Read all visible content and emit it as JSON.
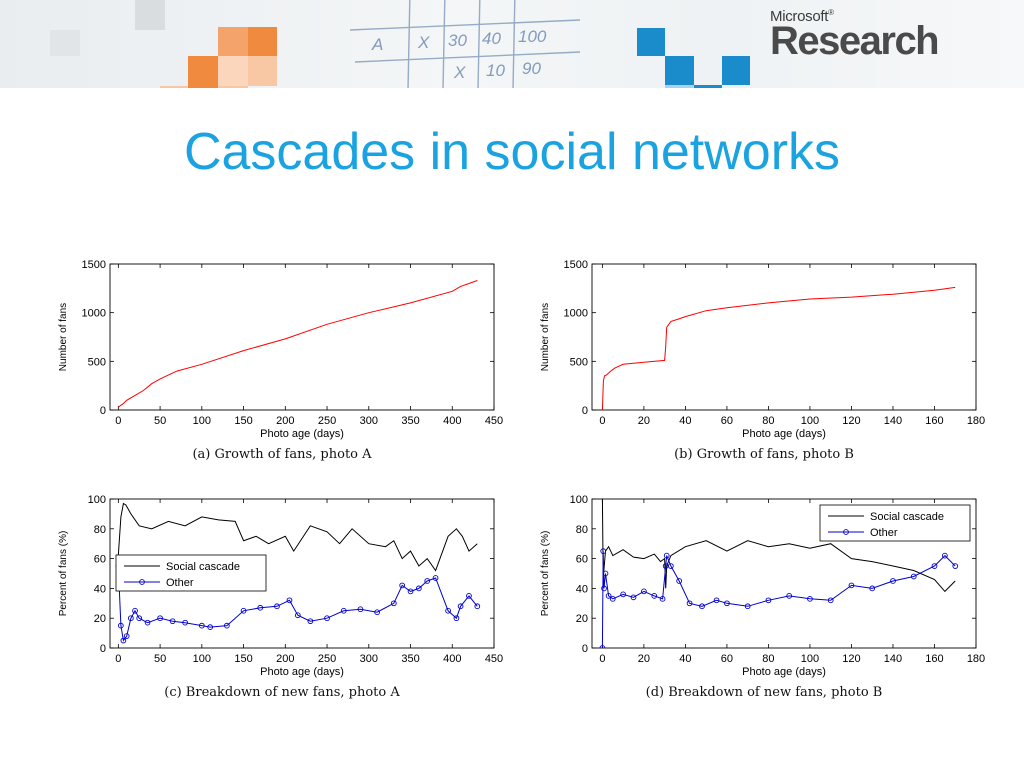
{
  "header": {
    "brand_small": "Microsoft",
    "brand_small_mark": "®",
    "brand_big": "Research",
    "sketch_texts": [
      "A",
      "X",
      "30",
      "40",
      "100",
      "X",
      "10",
      "90"
    ]
  },
  "title": "Cascades in social networks",
  "colors": {
    "title": "#1aa3e0",
    "red_line": "#ff0000",
    "blue_series": "#0000cc",
    "black_series": "#000000",
    "orange": "#f08a40",
    "blue_tile": "#1a8ccc"
  },
  "chart_data": [
    {
      "id": "a",
      "type": "line",
      "caption": "(a) Growth of fans, photo A",
      "xlabel": "Photo age (days)",
      "ylabel": "Number of fans",
      "xlim": [
        -10,
        450
      ],
      "ylim": [
        0,
        1500
      ],
      "xticks": [
        0,
        50,
        100,
        150,
        200,
        250,
        300,
        350,
        400,
        450
      ],
      "yticks": [
        0,
        500,
        1000,
        1500
      ],
      "series": [
        {
          "color": "#ff0000",
          "x": [
            0,
            5,
            10,
            20,
            30,
            40,
            50,
            70,
            100,
            150,
            200,
            250,
            300,
            350,
            400,
            410,
            420,
            430
          ],
          "y": [
            30,
            60,
            100,
            150,
            200,
            270,
            320,
            400,
            470,
            610,
            730,
            880,
            1000,
            1100,
            1220,
            1270,
            1300,
            1330
          ]
        }
      ]
    },
    {
      "id": "b",
      "type": "line",
      "caption": "(b) Growth of fans, photo B",
      "xlabel": "Photo age (days)",
      "ylabel": "Number of fans",
      "xlim": [
        -5,
        180
      ],
      "ylim": [
        0,
        1500
      ],
      "xticks": [
        0,
        20,
        40,
        60,
        80,
        100,
        120,
        140,
        160,
        180
      ],
      "yticks": [
        0,
        500,
        1000,
        1500
      ],
      "series": [
        {
          "color": "#ff0000",
          "x": [
            0,
            0.5,
            1,
            2,
            4,
            6,
            10,
            20,
            30,
            30.5,
            31,
            33,
            36,
            40,
            50,
            60,
            80,
            100,
            120,
            140,
            160,
            170
          ],
          "y": [
            0,
            300,
            350,
            360,
            400,
            430,
            470,
            490,
            510,
            650,
            850,
            910,
            930,
            960,
            1020,
            1050,
            1100,
            1140,
            1160,
            1190,
            1230,
            1260
          ]
        }
      ]
    },
    {
      "id": "c",
      "type": "line",
      "caption": "(c) Breakdown of new fans, photo A",
      "xlabel": "Photo age (days)",
      "ylabel": "Percent of fans (%)",
      "xlim": [
        -10,
        450
      ],
      "ylim": [
        0,
        100
      ],
      "xticks": [
        0,
        50,
        100,
        150,
        200,
        250,
        300,
        350,
        400,
        450
      ],
      "yticks": [
        0,
        20,
        40,
        60,
        80,
        100
      ],
      "legend": "center-left",
      "series": [
        {
          "name": "Social cascade",
          "color": "#000000",
          "marker": false,
          "x": [
            0,
            3,
            6,
            9,
            15,
            25,
            40,
            60,
            80,
            100,
            120,
            140,
            150,
            165,
            180,
            200,
            210,
            230,
            250,
            265,
            280,
            300,
            320,
            330,
            340,
            350,
            360,
            370,
            380,
            395,
            405,
            412,
            420,
            430
          ],
          "y": [
            62,
            88,
            97,
            96,
            90,
            82,
            80,
            85,
            82,
            88,
            86,
            85,
            72,
            75,
            70,
            75,
            65,
            82,
            78,
            70,
            80,
            70,
            68,
            72,
            60,
            65,
            55,
            60,
            52,
            75,
            80,
            75,
            65,
            70
          ]
        },
        {
          "name": "Other",
          "color": "#0000cc",
          "marker": true,
          "x": [
            0,
            3,
            6,
            10,
            15,
            20,
            25,
            35,
            50,
            65,
            80,
            100,
            110,
            130,
            150,
            170,
            190,
            205,
            215,
            230,
            250,
            270,
            290,
            310,
            330,
            340,
            350,
            360,
            370,
            380,
            395,
            405,
            410,
            420,
            430
          ],
          "y": [
            55,
            15,
            5,
            8,
            20,
            25,
            20,
            17,
            20,
            18,
            17,
            15,
            14,
            15,
            25,
            27,
            28,
            32,
            22,
            18,
            20,
            25,
            26,
            24,
            30,
            42,
            38,
            40,
            45,
            47,
            25,
            20,
            28,
            35,
            28
          ]
        }
      ]
    },
    {
      "id": "d",
      "type": "line",
      "caption": "(d) Breakdown of new fans, photo B",
      "xlabel": "Photo age (days)",
      "ylabel": "Percent of fans (%)",
      "xlim": [
        -5,
        180
      ],
      "ylim": [
        0,
        100
      ],
      "xticks": [
        0,
        20,
        40,
        60,
        80,
        100,
        120,
        140,
        160,
        180
      ],
      "yticks": [
        0,
        20,
        40,
        60,
        80,
        100
      ],
      "legend": "top-right",
      "series": [
        {
          "name": "Social cascade",
          "color": "#000000",
          "marker": false,
          "x": [
            0,
            0.3,
            0.6,
            1.5,
            3,
            5,
            10,
            15,
            20,
            25,
            28,
            30,
            30.5,
            31,
            33,
            40,
            50,
            60,
            70,
            80,
            90,
            100,
            110,
            120,
            130,
            140,
            150,
            160,
            165,
            170
          ],
          "y": [
            100,
            60,
            50,
            65,
            68,
            62,
            66,
            61,
            60,
            63,
            58,
            60,
            40,
            55,
            62,
            68,
            72,
            65,
            72,
            68,
            70,
            67,
            70,
            60,
            58,
            55,
            52,
            46,
            38,
            45
          ]
        },
        {
          "name": "Other",
          "color": "#0000cc",
          "marker": true,
          "x": [
            0,
            0.4,
            0.8,
            1.5,
            3,
            5,
            10,
            15,
            20,
            25,
            29,
            30.5,
            31,
            33,
            37,
            42,
            48,
            55,
            60,
            70,
            80,
            90,
            100,
            110,
            120,
            130,
            140,
            150,
            160,
            165,
            170
          ],
          "y": [
            0,
            65,
            40,
            50,
            35,
            33,
            36,
            34,
            38,
            35,
            33,
            55,
            62,
            55,
            45,
            30,
            28,
            32,
            30,
            28,
            32,
            35,
            33,
            32,
            42,
            40,
            45,
            48,
            55,
            62,
            55
          ]
        }
      ]
    }
  ]
}
